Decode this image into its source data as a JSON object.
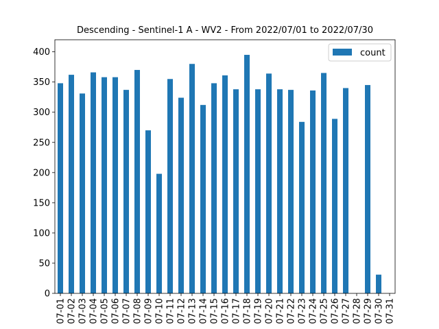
{
  "chart_data": {
    "type": "bar",
    "title": "Descending - Sentinel-1 A - WV2 - From 2022/07/01 to 2022/07/30",
    "xlabel": "",
    "ylabel": "",
    "ylim": [
      0,
      420
    ],
    "yticks": [
      0,
      50,
      100,
      150,
      200,
      250,
      300,
      350,
      400
    ],
    "categories": [
      "07-01",
      "07-02",
      "07-03",
      "07-04",
      "07-05",
      "07-06",
      "07-07",
      "07-08",
      "07-09",
      "07-10",
      "07-11",
      "07-12",
      "07-13",
      "07-14",
      "07-15",
      "07-16",
      "07-17",
      "07-18",
      "07-19",
      "07-20",
      "07-21",
      "07-22",
      "07-23",
      "07-24",
      "07-25",
      "07-26",
      "07-27",
      "07-28",
      "07-29",
      "07-30",
      "07-31"
    ],
    "series": [
      {
        "name": "count",
        "color": "#1f77b4",
        "values": [
          348,
          362,
          331,
          366,
          358,
          358,
          337,
          370,
          270,
          198,
          355,
          324,
          380,
          312,
          348,
          361,
          338,
          395,
          338,
          364,
          338,
          337,
          284,
          336,
          365,
          289,
          340,
          0,
          345,
          31,
          0
        ]
      }
    ],
    "legend": {
      "position": "top-right",
      "entries": [
        "count"
      ]
    },
    "grid": false
  }
}
